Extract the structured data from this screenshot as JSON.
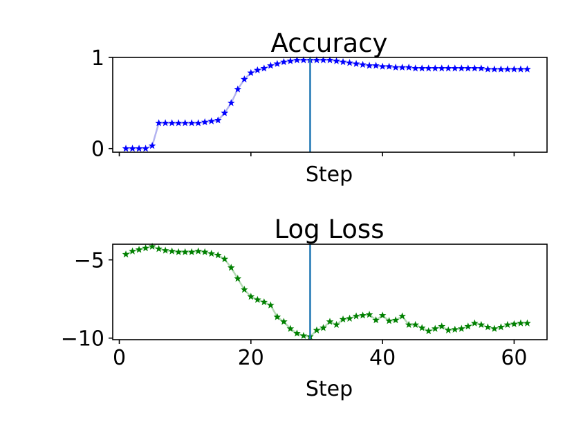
{
  "chart_data": [
    {
      "type": "line",
      "title": "Accuracy",
      "xlabel": "Step",
      "ylabel": "",
      "xlim": [
        -1,
        65
      ],
      "ylim": [
        -0.04,
        1.0
      ],
      "yticks": [
        0,
        1
      ],
      "xticks": [
        0,
        20,
        40,
        60
      ],
      "show_x_tick_labels": false,
      "marker_color": "#0000ff",
      "line_color": "#b3b3f0",
      "vline_color": "#1f77b4",
      "vline_x": 29,
      "x": [
        1,
        2,
        3,
        4,
        5,
        6,
        7,
        8,
        9,
        10,
        11,
        12,
        13,
        14,
        15,
        16,
        17,
        18,
        19,
        20,
        21,
        22,
        23,
        24,
        25,
        26,
        27,
        28,
        29,
        30,
        31,
        32,
        33,
        34,
        35,
        36,
        37,
        38,
        39,
        40,
        41,
        42,
        43,
        44,
        45,
        46,
        47,
        48,
        49,
        50,
        51,
        52,
        53,
        54,
        55,
        56,
        57,
        58,
        59,
        60,
        61,
        62
      ],
      "y": [
        0.0,
        0.0,
        0.0,
        0.0,
        0.03,
        0.28,
        0.28,
        0.28,
        0.28,
        0.28,
        0.28,
        0.28,
        0.29,
        0.3,
        0.31,
        0.39,
        0.5,
        0.65,
        0.76,
        0.83,
        0.86,
        0.88,
        0.91,
        0.93,
        0.95,
        0.96,
        0.97,
        0.97,
        0.97,
        0.97,
        0.97,
        0.97,
        0.96,
        0.95,
        0.94,
        0.93,
        0.92,
        0.91,
        0.91,
        0.9,
        0.9,
        0.89,
        0.89,
        0.89,
        0.88,
        0.88,
        0.88,
        0.88,
        0.88,
        0.88,
        0.88,
        0.88,
        0.88,
        0.88,
        0.88,
        0.87,
        0.87,
        0.87,
        0.87,
        0.87,
        0.87,
        0.87
      ]
    },
    {
      "type": "line",
      "title": "Log Loss",
      "xlabel": "Step",
      "ylabel": "",
      "xlim": [
        -1,
        65
      ],
      "ylim": [
        -10.1,
        -4.0
      ],
      "yticks": [
        -5,
        -10
      ],
      "yticklabels": [
        "−5",
        "−10"
      ],
      "xticks": [
        0,
        20,
        40,
        60
      ],
      "xticklabels": [
        "0",
        "20",
        "40",
        "60"
      ],
      "show_x_tick_labels": true,
      "marker_color": "#008000",
      "line_color": "#b3d9b3",
      "vline_color": "#1f77b4",
      "vline_x": 29,
      "x": [
        1,
        2,
        3,
        4,
        5,
        6,
        7,
        8,
        9,
        10,
        11,
        12,
        13,
        14,
        15,
        16,
        17,
        18,
        19,
        20,
        21,
        22,
        23,
        24,
        25,
        26,
        27,
        28,
        29,
        30,
        31,
        32,
        33,
        34,
        35,
        36,
        37,
        38,
        39,
        40,
        41,
        42,
        43,
        44,
        45,
        46,
        47,
        48,
        49,
        50,
        51,
        52,
        53,
        54,
        55,
        56,
        57,
        58,
        59,
        60,
        61,
        62
      ],
      "y": [
        -4.65,
        -4.45,
        -4.35,
        -4.25,
        -4.15,
        -4.3,
        -4.4,
        -4.45,
        -4.5,
        -4.5,
        -4.5,
        -4.45,
        -4.5,
        -4.6,
        -4.7,
        -4.95,
        -5.5,
        -6.2,
        -6.9,
        -7.35,
        -7.55,
        -7.7,
        -7.9,
        -8.65,
        -8.95,
        -9.4,
        -9.7,
        -9.85,
        -9.9,
        -9.5,
        -9.35,
        -8.95,
        -9.15,
        -8.8,
        -8.75,
        -8.6,
        -8.55,
        -8.5,
        -8.85,
        -8.55,
        -8.9,
        -8.85,
        -8.6,
        -9.15,
        -9.15,
        -9.35,
        -9.55,
        -9.4,
        -9.25,
        -9.5,
        -9.45,
        -9.4,
        -9.25,
        -9.05,
        -9.15,
        -9.3,
        -9.4,
        -9.3,
        -9.15,
        -9.1,
        -9.05,
        -9.05
      ]
    }
  ]
}
